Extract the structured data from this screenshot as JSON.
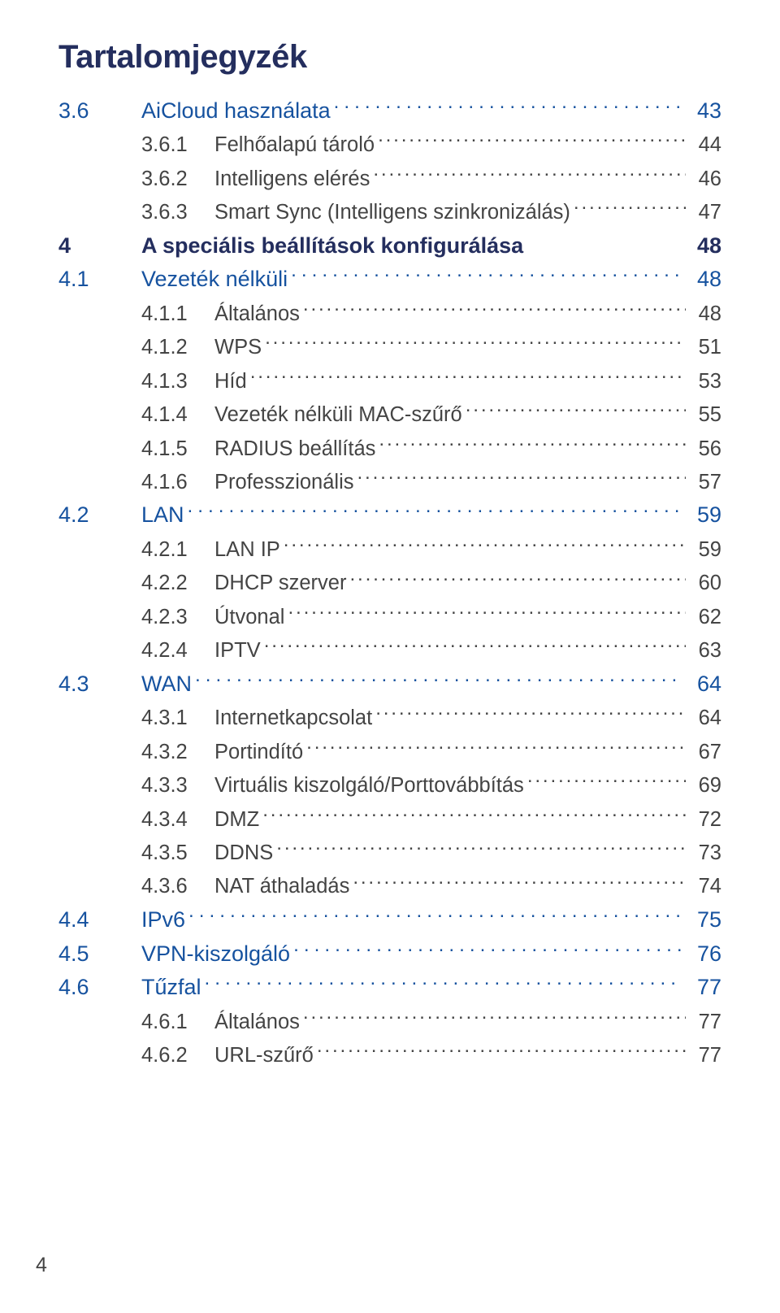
{
  "title": "Tartalomjegyzék",
  "footer_page": "4",
  "colors": {
    "heading": "#242e5e",
    "level1": "#16529f",
    "level2": "#444444",
    "background": "#ffffff"
  },
  "typography": {
    "title_fontsize_pt": 30,
    "lvl0_fontsize_pt": 20,
    "lvl1_fontsize_pt": 20,
    "lvl2_fontsize_pt": 19,
    "font_family": "Myriad Pro / sans-serif"
  },
  "entries": [
    {
      "level": 1,
      "num": "3.6",
      "label": "AiCloud használata",
      "page": "43",
      "leader": "sparse"
    },
    {
      "level": 2,
      "num": "3.6.1",
      "label": "Felhőalapú tároló",
      "page": "44",
      "leader": "dense"
    },
    {
      "level": 2,
      "num": "3.6.2",
      "label": "Intelligens elérés",
      "page": "46",
      "leader": "dense"
    },
    {
      "level": 2,
      "num": "3.6.3",
      "label": "Smart Sync (Intelligens szinkronizálás)",
      "page": "47",
      "leader": "dense"
    },
    {
      "level": 0,
      "num": "4",
      "label": "A speciális beállítások konfigurálása",
      "page": "48",
      "leader": "none"
    },
    {
      "level": 1,
      "num": "4.1",
      "label": "Vezeték nélküli",
      "page": "48",
      "leader": "sparse"
    },
    {
      "level": 2,
      "num": "4.1.1",
      "label": "Általános",
      "page": "48",
      "leader": "dense"
    },
    {
      "level": 2,
      "num": "4.1.2",
      "label": "WPS",
      "page": "51",
      "leader": "dense"
    },
    {
      "level": 2,
      "num": "4.1.3",
      "label": "Híd",
      "page": "53",
      "leader": "dense"
    },
    {
      "level": 2,
      "num": "4.1.4",
      "label": "Vezeték nélküli MAC-szűrő",
      "page": "55",
      "leader": "dense"
    },
    {
      "level": 2,
      "num": "4.1.5",
      "label": "RADIUS beállítás",
      "page": "56",
      "leader": "dense"
    },
    {
      "level": 2,
      "num": "4.1.6",
      "label": "Professzionális",
      "page": "57",
      "leader": "dense"
    },
    {
      "level": 1,
      "num": "4.2",
      "label": "LAN",
      "page": "59",
      "leader": "sparse"
    },
    {
      "level": 2,
      "num": "4.2.1",
      "label": "LAN IP",
      "page": "59",
      "leader": "dense"
    },
    {
      "level": 2,
      "num": "4.2.2",
      "label": "DHCP szerver",
      "page": "60",
      "leader": "dense"
    },
    {
      "level": 2,
      "num": "4.2.3",
      "label": "Útvonal",
      "page": "62",
      "leader": "dense"
    },
    {
      "level": 2,
      "num": "4.2.4",
      "label": "IPTV",
      "page": "63",
      "leader": "dense"
    },
    {
      "level": 1,
      "num": "4.3",
      "label": "WAN",
      "page": "64",
      "leader": "sparse"
    },
    {
      "level": 2,
      "num": "4.3.1",
      "label": "Internetkapcsolat",
      "page": "64",
      "leader": "dense"
    },
    {
      "level": 2,
      "num": "4.3.2",
      "label": "Portindító",
      "page": "67",
      "leader": "dense"
    },
    {
      "level": 2,
      "num": "4.3.3",
      "label": "Virtuális kiszolgáló/Porttovábbítás",
      "page": "69",
      "leader": "dense"
    },
    {
      "level": 2,
      "num": "4.3.4",
      "label": "DMZ",
      "page": "72",
      "leader": "dense"
    },
    {
      "level": 2,
      "num": "4.3.5",
      "label": "DDNS",
      "page": "73",
      "leader": "dense"
    },
    {
      "level": 2,
      "num": "4.3.6",
      "label": "NAT áthaladás",
      "page": "74",
      "leader": "dense"
    },
    {
      "level": 1,
      "num": "4.4",
      "label": "IPv6",
      "page": "75",
      "leader": "sparse"
    },
    {
      "level": 1,
      "num": "4.5",
      "label": "VPN-kiszolgáló",
      "page": "76",
      "leader": "sparse"
    },
    {
      "level": 1,
      "num": "4.6",
      "label": "Tűzfal",
      "page": "77",
      "leader": "sparse"
    },
    {
      "level": 2,
      "num": "4.6.1",
      "label": "Általános",
      "page": "77",
      "leader": "dense"
    },
    {
      "level": 2,
      "num": "4.6.2",
      "label": "URL-szűrő",
      "page": "77",
      "leader": "dense"
    }
  ]
}
